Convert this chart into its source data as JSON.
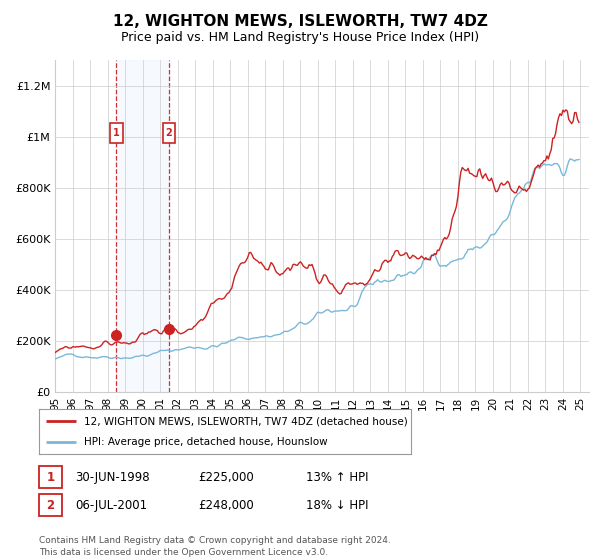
{
  "title": "12, WIGHTON MEWS, ISLEWORTH, TW7 4DZ",
  "subtitle": "Price paid vs. HM Land Registry's House Price Index (HPI)",
  "legend_line1": "12, WIGHTON MEWS, ISLEWORTH, TW7 4DZ (detached house)",
  "legend_line2": "HPI: Average price, detached house, Hounslow",
  "transaction1_date": "30-JUN-1998",
  "transaction1_price": "£225,000",
  "transaction1_hpi": "13% ↑ HPI",
  "transaction1_x": 1998.5,
  "transaction1_y": 225000,
  "transaction2_date": "06-JUL-2001",
  "transaction2_price": "£248,000",
  "transaction2_hpi": "18% ↓ HPI",
  "transaction2_x": 2001.5,
  "transaction2_y": 248000,
  "xmin": 1995.0,
  "xmax": 2025.5,
  "ymin": 0,
  "ymax": 1300000,
  "yticks": [
    0,
    200000,
    400000,
    600000,
    800000,
    1000000,
    1200000
  ],
  "ylabel_fmt": [
    "£0",
    "£200K",
    "£400K",
    "£600K",
    "£800K",
    "£1M",
    "£1.2M"
  ],
  "background_color": "#ffffff",
  "grid_color": "#cccccc",
  "hpi_line_color": "#7ab8d9",
  "price_line_color": "#cc2222",
  "shaded_region_color": "#ddeeff",
  "dashed_line_color": "#cc3333",
  "footnote": "Contains HM Land Registry data © Crown copyright and database right 2024.\nThis data is licensed under the Open Government Licence v3.0.",
  "xtick_labels": [
    "95",
    "96",
    "97",
    "98",
    "99",
    "00",
    "01",
    "02",
    "03",
    "04",
    "05",
    "06",
    "07",
    "08",
    "09",
    "10",
    "11",
    "12",
    "13",
    "14",
    "15",
    "16",
    "17",
    "18",
    "19",
    "20",
    "21",
    "22",
    "23",
    "24",
    "25"
  ],
  "xtick_years": [
    1995,
    1996,
    1997,
    1998,
    1999,
    2000,
    2001,
    2002,
    2003,
    2004,
    2005,
    2006,
    2007,
    2008,
    2009,
    2010,
    2011,
    2012,
    2013,
    2014,
    2015,
    2016,
    2017,
    2018,
    2019,
    2020,
    2021,
    2022,
    2023,
    2024,
    2025
  ]
}
